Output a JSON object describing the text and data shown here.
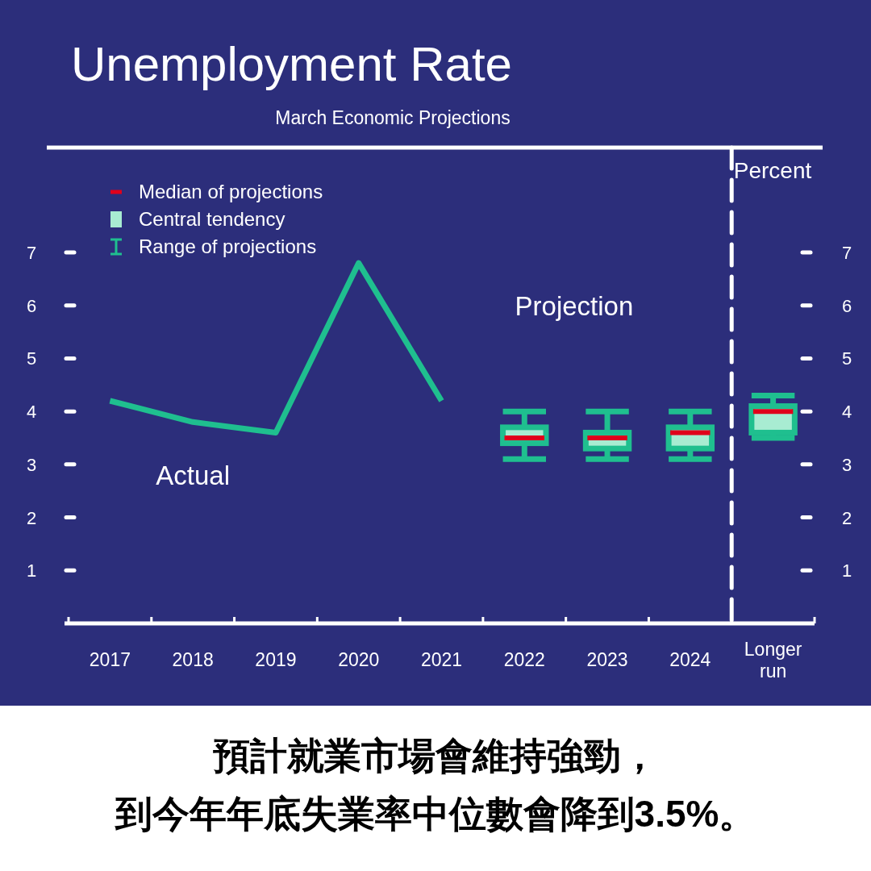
{
  "chart_data": {
    "type": "box",
    "title": "Unemployment Rate",
    "subtitle": "March Economic Projections",
    "y2label": "Percent",
    "categories": [
      "2017",
      "2018",
      "2019",
      "2020",
      "2021",
      "2022",
      "2023",
      "2024",
      "Longer run"
    ],
    "series": [
      {
        "type": "line",
        "name": "Actual",
        "color": "#1fbf8f",
        "values": [
          4.2,
          3.8,
          3.6,
          6.8,
          4.2,
          null,
          null,
          null,
          null
        ]
      },
      {
        "color": "#1fbf8f",
        "boxes": [
          null,
          null,
          null,
          null,
          null,
          {
            "low": 3.1,
            "q1": 3.4,
            "median": 3.5,
            "q3": 3.7,
            "high": 4.0
          },
          {
            "low": 3.1,
            "q1": 3.3,
            "median": 3.5,
            "q3": 3.6,
            "high": 4.0
          },
          {
            "low": 3.1,
            "q1": 3.3,
            "median": 3.6,
            "q3": 3.7,
            "high": 4.0
          },
          {
            "low": 3.5,
            "q1": 3.6,
            "median": 4.0,
            "q3": 4.1,
            "high": 4.3
          }
        ]
      }
    ],
    "ylim": [
      0,
      7
    ],
    "yticks": [
      1,
      2,
      3,
      4,
      5,
      6,
      7
    ],
    "y2lim": [
      0,
      7
    ],
    "y2ticks": [
      1,
      2,
      3,
      4,
      5,
      6,
      7
    ],
    "annotations": [
      "Projection",
      "Median of projections",
      "Central tendency",
      "Range of projections",
      "預計就業市場會維持強勁，",
      "到今年年底失業率中位數會降到3.5%。"
    ]
  }
}
